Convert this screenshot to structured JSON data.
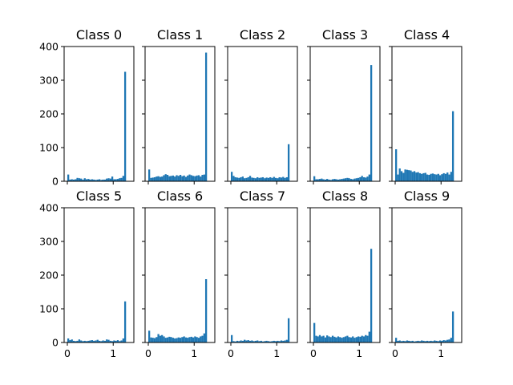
{
  "chart_data": [
    {
      "type": "bar",
      "title": "Class 0",
      "xlim": [
        -0.07,
        1.45
      ],
      "ylim": [
        0,
        400
      ],
      "bin_start": 0,
      "bin_width": 0.04,
      "values": [
        20,
        5,
        6,
        5,
        6,
        10,
        9,
        8,
        5,
        9,
        6,
        7,
        5,
        6,
        5,
        4,
        5,
        6,
        4,
        5,
        5,
        8,
        9,
        8,
        14,
        6,
        6,
        7,
        9,
        10,
        16,
        325
      ],
      "yticks": [
        "0",
        "100",
        "200",
        "300",
        "400"
      ],
      "xticks": []
    },
    {
      "type": "bar",
      "title": "Class 1",
      "xlim": [
        -0.07,
        1.45
      ],
      "ylim": [
        0,
        400
      ],
      "bin_start": 0,
      "bin_width": 0.04,
      "values": [
        35,
        10,
        11,
        12,
        14,
        15,
        13,
        14,
        18,
        21,
        19,
        15,
        16,
        17,
        14,
        18,
        16,
        19,
        15,
        17,
        13,
        17,
        20,
        18,
        16,
        15,
        17,
        18,
        14,
        19,
        20,
        382
      ],
      "yticks": [],
      "xticks": []
    },
    {
      "type": "bar",
      "title": "Class 2",
      "xlim": [
        -0.07,
        1.45
      ],
      "ylim": [
        0,
        400
      ],
      "bin_start": 0,
      "bin_width": 0.04,
      "values": [
        28,
        16,
        12,
        11,
        10,
        12,
        14,
        9,
        10,
        12,
        16,
        11,
        10,
        9,
        12,
        10,
        11,
        12,
        9,
        11,
        10,
        12,
        10,
        13,
        10,
        9,
        12,
        11,
        13,
        10,
        12,
        110
      ],
      "yticks": [],
      "xticks": []
    },
    {
      "type": "bar",
      "title": "Class 3",
      "xlim": [
        -0.07,
        1.45
      ],
      "ylim": [
        0,
        400
      ],
      "bin_start": 0,
      "bin_width": 0.04,
      "values": [
        15,
        6,
        6,
        7,
        8,
        6,
        5,
        7,
        5,
        4,
        6,
        7,
        6,
        5,
        6,
        7,
        8,
        9,
        10,
        9,
        7,
        6,
        8,
        9,
        10,
        12,
        16,
        12,
        11,
        14,
        20,
        345
      ],
      "yticks": [],
      "xticks": []
    },
    {
      "type": "bar",
      "title": "Class 4",
      "xlim": [
        -0.07,
        1.45
      ],
      "ylim": [
        0,
        400
      ],
      "bin_start": 0,
      "bin_width": 0.04,
      "values": [
        95,
        20,
        38,
        30,
        25,
        35,
        34,
        33,
        32,
        28,
        30,
        26,
        27,
        24,
        22,
        24,
        25,
        20,
        19,
        22,
        23,
        21,
        20,
        22,
        18,
        21,
        24,
        22,
        26,
        20,
        28,
        208
      ],
      "yticks": [],
      "xticks": []
    },
    {
      "type": "bar",
      "title": "Class 5",
      "xlim": [
        -0.07,
        1.45
      ],
      "ylim": [
        0,
        400
      ],
      "bin_start": 0,
      "bin_width": 0.04,
      "values": [
        12,
        7,
        9,
        5,
        4,
        5,
        9,
        6,
        4,
        5,
        4,
        5,
        6,
        7,
        5,
        6,
        8,
        5,
        4,
        6,
        5,
        9,
        8,
        5,
        4,
        6,
        5,
        7,
        4,
        6,
        12,
        122
      ],
      "yticks": [
        "0",
        "100",
        "200",
        "300",
        "400"
      ],
      "xticks": [
        "0",
        "1"
      ]
    },
    {
      "type": "bar",
      "title": "Class 6",
      "xlim": [
        -0.07,
        1.45
      ],
      "ylim": [
        0,
        400
      ],
      "bin_start": 0,
      "bin_width": 0.04,
      "values": [
        35,
        15,
        14,
        13,
        16,
        25,
        20,
        22,
        18,
        14,
        15,
        17,
        16,
        14,
        12,
        13,
        15,
        14,
        16,
        18,
        15,
        14,
        16,
        17,
        15,
        18,
        16,
        14,
        18,
        20,
        27,
        188
      ],
      "yticks": [],
      "xticks": [
        "0",
        "1"
      ]
    },
    {
      "type": "bar",
      "title": "Class 7",
      "xlim": [
        -0.07,
        1.45
      ],
      "ylim": [
        0,
        400
      ],
      "bin_start": 0,
      "bin_width": 0.04,
      "values": [
        22,
        4,
        3,
        5,
        4,
        6,
        5,
        8,
        6,
        7,
        5,
        6,
        4,
        5,
        6,
        4,
        5,
        3,
        4,
        5,
        4,
        3,
        4,
        5,
        4,
        5,
        4,
        6,
        5,
        6,
        8,
        72
      ],
      "yticks": [],
      "xticks": [
        "0",
        "1"
      ]
    },
    {
      "type": "bar",
      "title": "Class 8",
      "xlim": [
        -0.07,
        1.45
      ],
      "ylim": [
        0,
        400
      ],
      "bin_start": 0,
      "bin_width": 0.04,
      "values": [
        58,
        20,
        18,
        22,
        18,
        20,
        15,
        21,
        18,
        16,
        20,
        17,
        15,
        18,
        16,
        14,
        16,
        18,
        20,
        16,
        15,
        18,
        14,
        16,
        18,
        17,
        20,
        18,
        22,
        20,
        32,
        278
      ],
      "yticks": [],
      "xticks": [
        "0",
        "1"
      ]
    },
    {
      "type": "bar",
      "title": "Class 9",
      "xlim": [
        -0.07,
        1.45
      ],
      "ylim": [
        0,
        400
      ],
      "bin_start": 0,
      "bin_width": 0.04,
      "values": [
        14,
        5,
        6,
        4,
        5,
        4,
        6,
        5,
        4,
        5,
        3,
        4,
        5,
        4,
        6,
        5,
        4,
        5,
        4,
        5,
        4,
        6,
        5,
        4,
        6,
        5,
        7,
        6,
        8,
        9,
        14,
        92
      ],
      "yticks": [],
      "xticks": [
        "0",
        "1"
      ]
    }
  ],
  "colors": {
    "bar": "#1f77b4",
    "axis": "#000000",
    "background": "#ffffff"
  }
}
